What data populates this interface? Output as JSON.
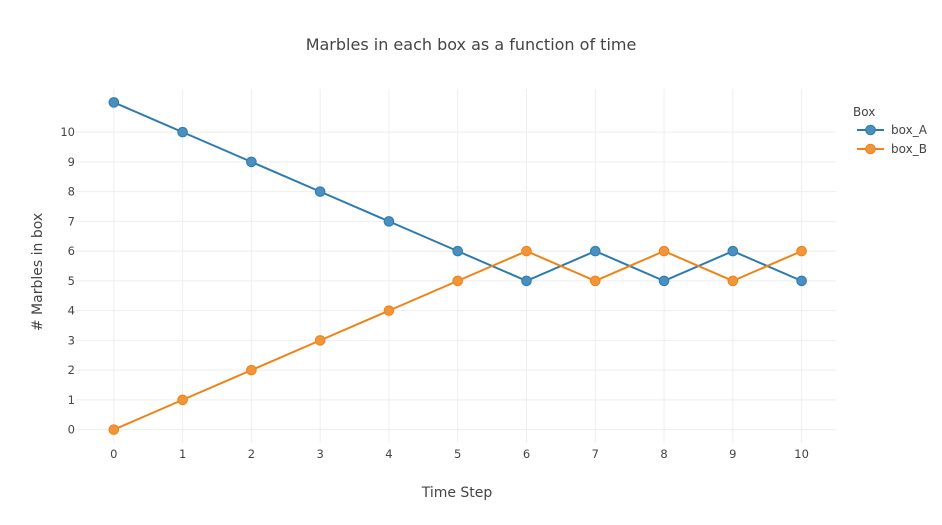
{
  "chart_data": {
    "type": "line",
    "title": "Marbles in each box as a function of time",
    "xlabel": "Time Step",
    "ylabel": "# Marbles in box",
    "x": [
      0,
      1,
      2,
      3,
      4,
      5,
      6,
      7,
      8,
      9,
      10
    ],
    "xlim": [
      -0.55,
      10.5
    ],
    "ylim": [
      -0.45,
      11.45
    ],
    "xticks": [
      0,
      1,
      2,
      3,
      4,
      5,
      6,
      7,
      8,
      9,
      10
    ],
    "yticks": [
      0,
      1,
      2,
      3,
      4,
      5,
      6,
      7,
      8,
      9,
      10
    ],
    "grid": true,
    "legend": {
      "title": "Box",
      "placement": "top-right"
    },
    "series": [
      {
        "name": "box_A",
        "color": "#2c7bb0",
        "marker_fill": "#4a8fbf",
        "values": [
          11,
          10,
          9,
          8,
          7,
          6,
          5,
          6,
          5,
          6,
          5
        ]
      },
      {
        "name": "box_B",
        "color": "#f08216",
        "marker_fill": "#f0953a",
        "values": [
          0,
          1,
          2,
          3,
          4,
          5,
          6,
          5,
          6,
          5,
          6
        ]
      }
    ]
  }
}
